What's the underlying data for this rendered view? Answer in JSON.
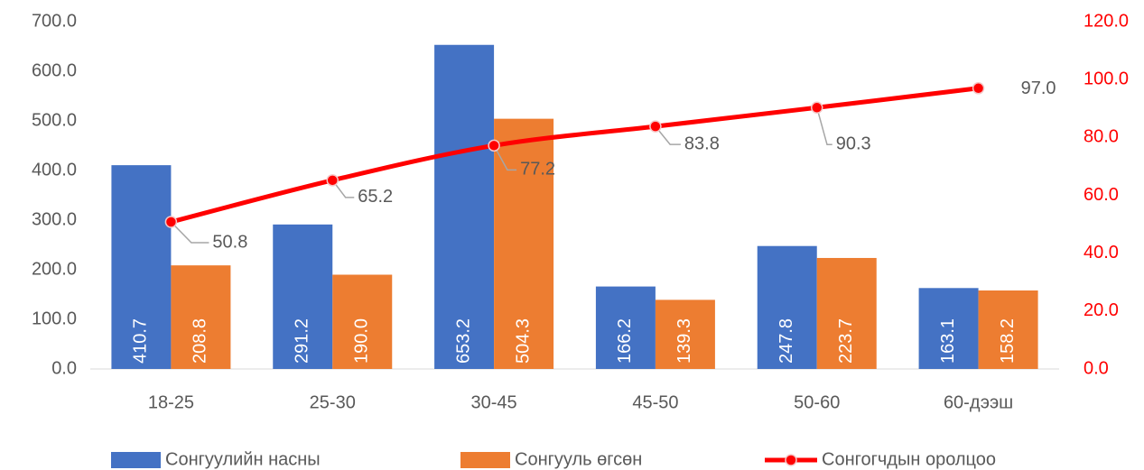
{
  "chart_data": {
    "type": "bar_line",
    "categories": [
      "18-25",
      "25-30",
      "30-45",
      "45-50",
      "50-60",
      "60-дээш"
    ],
    "series": [
      {
        "name": "Сонгуулийн насны",
        "color": "#4472c4",
        "type": "bar",
        "values": [
          410.7,
          291.2,
          653.2,
          166.2,
          247.8,
          163.1
        ],
        "value_labels": [
          "410.7",
          "291.2",
          "653.2",
          "166.2",
          "247.8",
          "163.1"
        ]
      },
      {
        "name": "Сонгууль өгсөн",
        "color": "#ed7d31",
        "type": "bar",
        "values": [
          208.8,
          190.0,
          504.3,
          139.3,
          223.7,
          158.2
        ],
        "value_labels": [
          "208.8",
          "190.0",
          "504.3",
          "139.3",
          "223.7",
          "158.2"
        ]
      },
      {
        "name": "Сонгогчдын оролцоо",
        "color": "#ff0000",
        "type": "line",
        "axis": "y2",
        "values": [
          50.8,
          65.2,
          77.2,
          83.8,
          90.3,
          97.0
        ],
        "value_labels": [
          "50.8",
          "65.2",
          "77.2",
          "83.8",
          "90.3",
          "97.0"
        ]
      }
    ],
    "ylim": [
      0,
      700
    ],
    "yticks": [
      {
        "value": 0,
        "label": "0.0"
      },
      {
        "value": 100,
        "label": "100.0"
      },
      {
        "value": 200,
        "label": "200.0"
      },
      {
        "value": 300,
        "label": "300.0"
      },
      {
        "value": 400,
        "label": "400.0"
      },
      {
        "value": 500,
        "label": "500.0"
      },
      {
        "value": 600,
        "label": "600.0"
      },
      {
        "value": 700,
        "label": "700.0"
      }
    ],
    "y2lim": [
      0,
      120
    ],
    "y2ticks": [
      {
        "value": 0,
        "label": "0.0"
      },
      {
        "value": 20,
        "label": "20.0"
      },
      {
        "value": 40,
        "label": "40.0"
      },
      {
        "value": 60,
        "label": "60.0"
      },
      {
        "value": 80,
        "label": "80.0"
      },
      {
        "value": 100,
        "label": "100.0"
      },
      {
        "value": 120,
        "label": "120.0"
      }
    ],
    "y2color": "#ff0000",
    "grid": false,
    "legend": "bottom"
  }
}
